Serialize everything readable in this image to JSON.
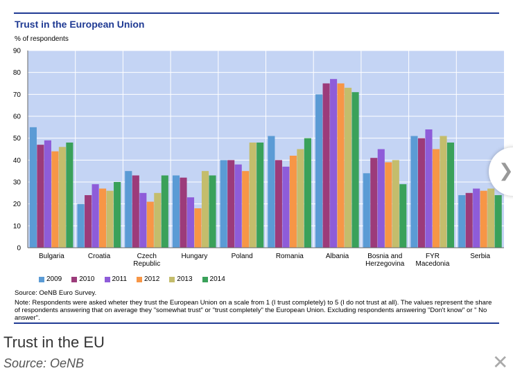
{
  "header": {
    "title": "Trust in the European Union",
    "unit": "% of respondents"
  },
  "chart_data": {
    "type": "bar",
    "title": "Trust in the European Union",
    "ylabel": "% of respondents",
    "ylim": [
      0,
      90
    ],
    "yticks": [
      0,
      10,
      20,
      30,
      40,
      50,
      60,
      70,
      80,
      90
    ],
    "categories": [
      "Bulgaria",
      "Croatia",
      "Czech Republic",
      "Hungary",
      "Poland",
      "Romania",
      "Albania",
      "Bosnia and Herzegovina",
      "FYR Macedonia",
      "Serbia"
    ],
    "category_lines": [
      [
        "Bulgaria"
      ],
      [
        "Croatia"
      ],
      [
        "Czech",
        "Republic"
      ],
      [
        "Hungary"
      ],
      [
        "Poland"
      ],
      [
        "Romania"
      ],
      [
        "Albania"
      ],
      [
        "Bosnia and",
        "Herzegovina"
      ],
      [
        "FYR",
        "Macedonia"
      ],
      [
        "Serbia"
      ]
    ],
    "series": [
      {
        "name": "2009",
        "color": "#5b9bd5",
        "values": [
          55,
          20,
          35,
          33,
          40,
          51,
          70,
          34,
          51,
          24
        ]
      },
      {
        "name": "2010",
        "color": "#9c3b7a",
        "values": [
          47,
          24,
          33,
          32,
          40,
          40,
          75,
          41,
          50,
          25
        ]
      },
      {
        "name": "2011",
        "color": "#8e5cd9",
        "values": [
          49,
          29,
          25,
          23,
          38,
          37,
          77,
          45,
          54,
          27
        ]
      },
      {
        "name": "2012",
        "color": "#f79646",
        "values": [
          44,
          27,
          21,
          18,
          35,
          42,
          75,
          39,
          45,
          26
        ]
      },
      {
        "name": "2013",
        "color": "#c4bd6c",
        "values": [
          46,
          26,
          25,
          35,
          48,
          45,
          73,
          40,
          51,
          27
        ]
      },
      {
        "name": "2014",
        "color": "#3aa15a",
        "values": [
          48,
          30,
          33,
          33,
          48,
          50,
          71,
          29,
          48,
          24
        ]
      }
    ],
    "grid": true,
    "legend": "bottom"
  },
  "notes": {
    "source": "Source: OeNB Euro Survey.",
    "note": "Note: Respondents were asked wheter they trust the European Union on a scale from 1 (I trust completely) to 5 (I do not trust at all). The values represent the share of respondents answering that on average they \"somewhat trust\" or \"trust completely\" the European Union. Excluding respondents answering \"Don't know\" or \" No answer\"."
  },
  "caption": {
    "title": "Trust in the EU",
    "source": "Source: OeNB"
  },
  "controls": {
    "next_icon": "chevron-right-icon",
    "close_icon": "close-icon",
    "next_glyph": "❯",
    "close_glyph": "✕"
  }
}
